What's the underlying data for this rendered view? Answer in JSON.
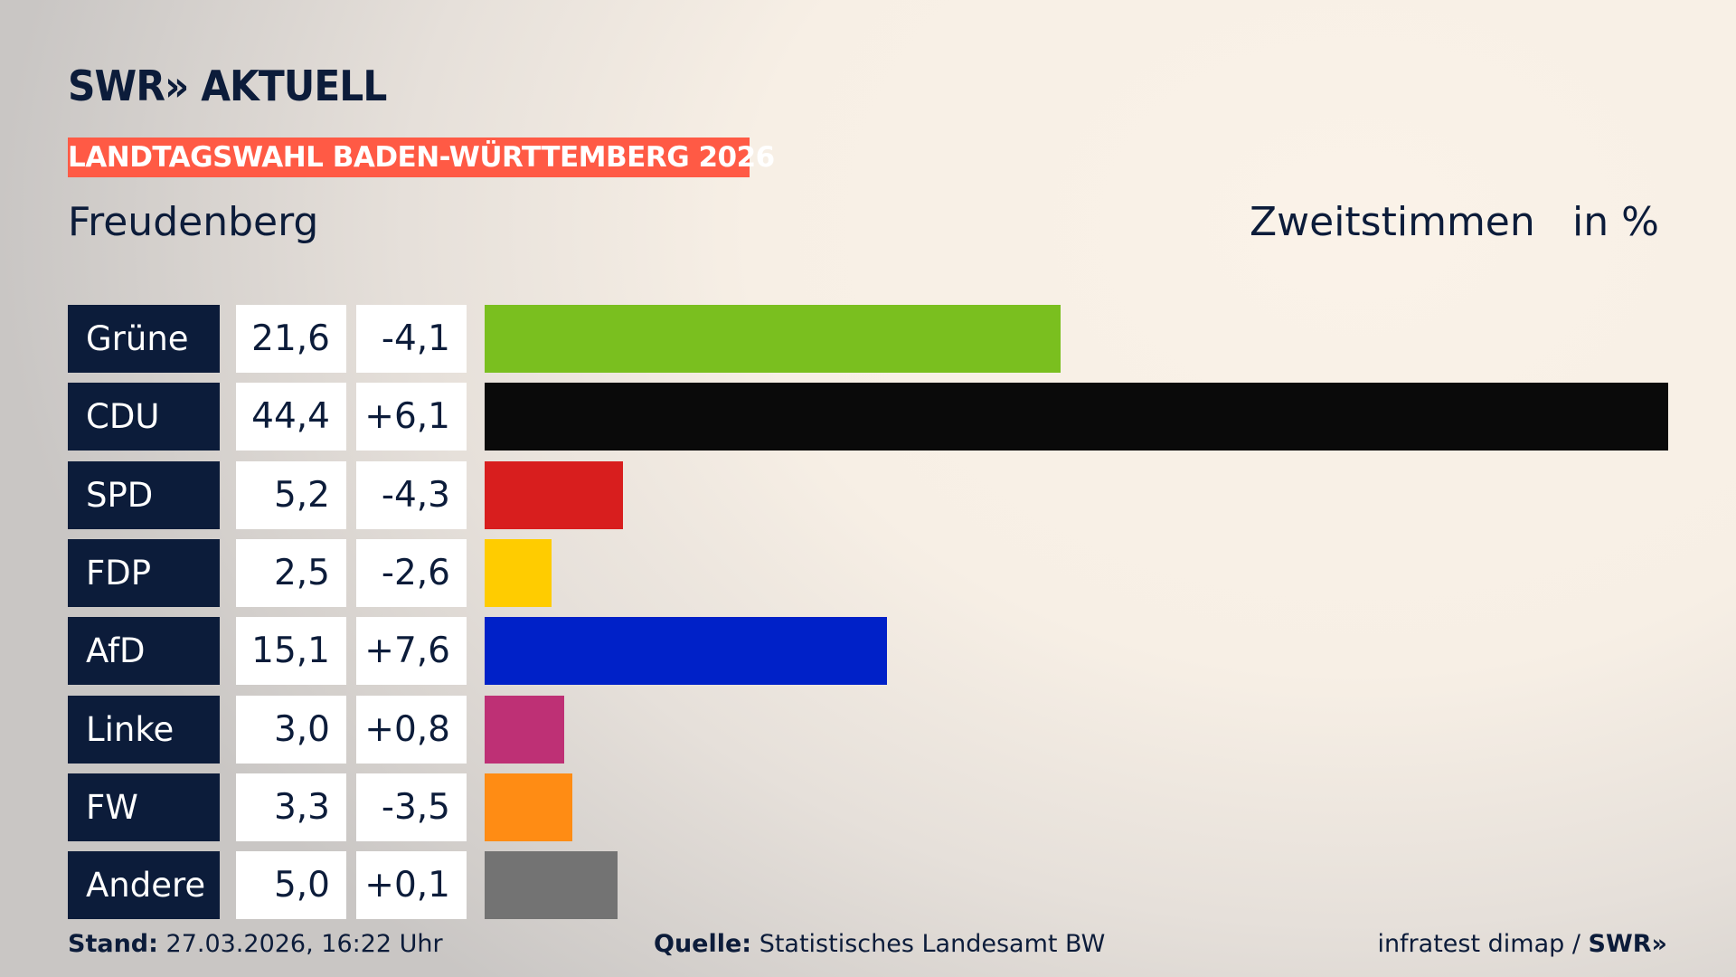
{
  "brand": {
    "logo": "SWR» AKTUELL"
  },
  "banner": "LANDTAGSWAHL BADEN-WÜRTTEMBERG 2026",
  "district": "Freudenberg",
  "header": {
    "vote_type": "Zweitstimmen",
    "unit": "in %"
  },
  "chart_data": {
    "type": "bar",
    "orientation": "horizontal",
    "categories": [
      "Grüne",
      "CDU",
      "SPD",
      "FDP",
      "AfD",
      "Linke",
      "FW",
      "Andere"
    ],
    "series": [
      {
        "name": "Zweitstimmen",
        "values": [
          21.6,
          44.4,
          5.2,
          2.5,
          15.1,
          3.0,
          3.3,
          5.0
        ]
      }
    ],
    "values_label": [
      "21,6",
      "44,4",
      "5,2",
      "2,5",
      "15,1",
      "3,0",
      "3,3",
      "5,0"
    ],
    "changes": [
      -4.1,
      6.1,
      -4.3,
      -2.6,
      7.6,
      0.8,
      -3.5,
      0.1
    ],
    "changes_label": [
      "-4,1",
      "+6,1",
      "-4,3",
      "-2,6",
      "+7,6",
      "+0,8",
      "-3,5",
      "+0,1"
    ],
    "colors": [
      "#7abf1f",
      "#0a0a0a",
      "#d81e1e",
      "#ffcc00",
      "#0021c8",
      "#be3075",
      "#ff8c14",
      "#737373"
    ],
    "xlim": [
      0,
      44.4
    ]
  },
  "footer": {
    "stand_label": "Stand:",
    "stand_value": "27.03.2026, 16:22 Uhr",
    "source_label": "Quelle:",
    "source_value": "Statistisches Landesamt BW",
    "credit": "infratest dimap / ",
    "credit_logo": "SWR»"
  }
}
